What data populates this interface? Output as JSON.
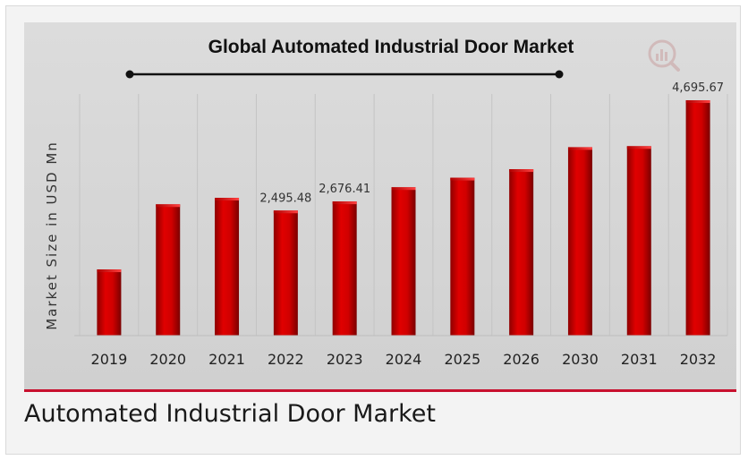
{
  "caption": "Automated Industrial Door Market",
  "chart_data": {
    "type": "bar",
    "title": "Global Automated Industrial Door Market",
    "ylabel": "Market Size in USD Mn",
    "xlabel": "",
    "categories": [
      "2019",
      "2020",
      "2021",
      "2022",
      "2023",
      "2024",
      "2025",
      "2026",
      "2030",
      "2031",
      "2032"
    ],
    "values": [
      1320,
      2620,
      2750,
      2495.48,
      2676.41,
      2960,
      3150,
      3320,
      3760,
      3780,
      4695.67
    ],
    "data_labels": [
      {
        "category": "2022",
        "text": "2,495.48"
      },
      {
        "category": "2023",
        "text": "2,676.41"
      },
      {
        "category": "2032",
        "text": "4,695.67"
      }
    ],
    "bar_color": "#cc0000",
    "grid": false,
    "legend": "none"
  }
}
